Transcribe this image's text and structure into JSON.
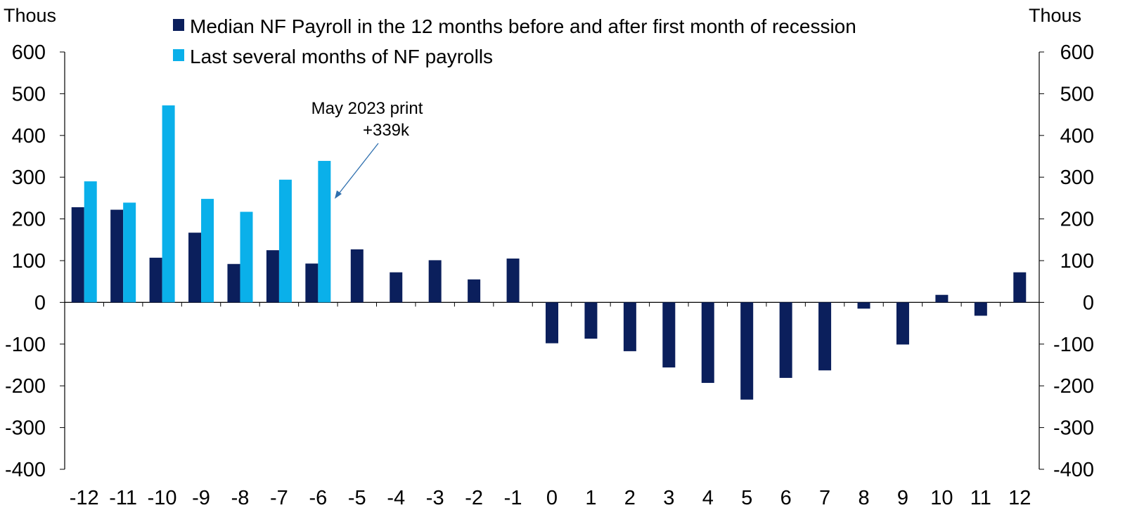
{
  "chart_data": {
    "type": "bar",
    "left_unit": "Thous",
    "right_unit": "Thous",
    "ylim": [
      -400,
      600
    ],
    "y_ticks": [
      600,
      500,
      400,
      300,
      200,
      100,
      0,
      -100,
      -200,
      -300,
      -400
    ],
    "categories": [
      "-12",
      "-11",
      "-10",
      "-9",
      "-8",
      "-7",
      "-6",
      "-5",
      "-4",
      "-3",
      "-2",
      "-1",
      "0",
      "1",
      "2",
      "3",
      "4",
      "5",
      "6",
      "7",
      "8",
      "9",
      "10",
      "11",
      "12"
    ],
    "series": [
      {
        "name": "Median NF Payroll in the 12 months before and after first month of recession",
        "color": "#0b1f5c",
        "values": [
          228,
          222,
          107,
          167,
          92,
          125,
          93,
          127,
          72,
          101,
          55,
          105,
          -98,
          -87,
          -117,
          -156,
          -193,
          -233,
          -181,
          -163,
          -15,
          -101,
          18,
          -32,
          72
        ]
      },
      {
        "name": "Last several months of NF payrolls",
        "color": "#0ab0ea",
        "values": [
          290,
          239,
          472,
          248,
          217,
          294,
          339,
          null,
          null,
          null,
          null,
          null,
          null,
          null,
          null,
          null,
          null,
          null,
          null,
          null,
          null,
          null,
          null,
          null,
          null
        ]
      }
    ],
    "annotation": {
      "lines": [
        "May 2023 print",
        "+339k"
      ],
      "points_to_category": "-6",
      "points_to_value": 339
    },
    "legend_position": "top-center",
    "grid": false
  }
}
